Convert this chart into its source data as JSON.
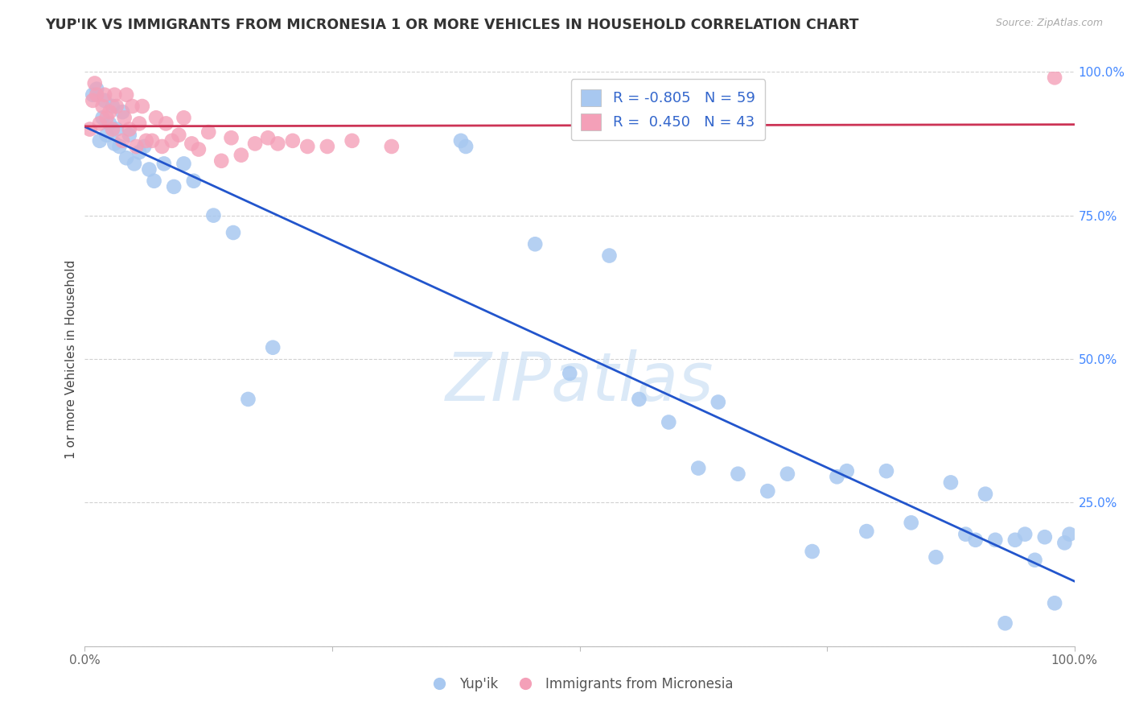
{
  "title": "YUP'IK VS IMMIGRANTS FROM MICRONESIA 1 OR MORE VEHICLES IN HOUSEHOLD CORRELATION CHART",
  "source": "Source: ZipAtlas.com",
  "ylabel": "1 or more Vehicles in Household",
  "blue_R": -0.805,
  "blue_N": 59,
  "pink_R": 0.45,
  "pink_N": 43,
  "blue_color": "#a8c8f0",
  "pink_color": "#f4a0b8",
  "blue_line_color": "#2255cc",
  "pink_line_color": "#cc3355",
  "watermark": "ZIPatlas",
  "blue_scatter_x": [
    0.008,
    0.012,
    0.015,
    0.018,
    0.02,
    0.022,
    0.025,
    0.028,
    0.03,
    0.032,
    0.035,
    0.038,
    0.042,
    0.045,
    0.05,
    0.055,
    0.06,
    0.065,
    0.07,
    0.08,
    0.09,
    0.1,
    0.11,
    0.13,
    0.15,
    0.165,
    0.19,
    0.38,
    0.385,
    0.455,
    0.49,
    0.53,
    0.56,
    0.59,
    0.62,
    0.64,
    0.66,
    0.69,
    0.71,
    0.735,
    0.76,
    0.77,
    0.79,
    0.81,
    0.835,
    0.86,
    0.875,
    0.89,
    0.9,
    0.91,
    0.92,
    0.93,
    0.94,
    0.95,
    0.96,
    0.97,
    0.98,
    0.99,
    0.995
  ],
  "blue_scatter_y": [
    0.96,
    0.97,
    0.88,
    0.92,
    0.95,
    0.89,
    0.91,
    0.94,
    0.875,
    0.9,
    0.87,
    0.93,
    0.85,
    0.89,
    0.84,
    0.86,
    0.87,
    0.83,
    0.81,
    0.84,
    0.8,
    0.84,
    0.81,
    0.75,
    0.72,
    0.43,
    0.52,
    0.88,
    0.87,
    0.7,
    0.475,
    0.68,
    0.43,
    0.39,
    0.31,
    0.425,
    0.3,
    0.27,
    0.3,
    0.165,
    0.295,
    0.305,
    0.2,
    0.305,
    0.215,
    0.155,
    0.285,
    0.195,
    0.185,
    0.265,
    0.185,
    0.04,
    0.185,
    0.195,
    0.15,
    0.19,
    0.075,
    0.18,
    0.195
  ],
  "pink_scatter_x": [
    0.005,
    0.008,
    0.01,
    0.012,
    0.015,
    0.018,
    0.02,
    0.022,
    0.025,
    0.028,
    0.03,
    0.032,
    0.038,
    0.04,
    0.042,
    0.045,
    0.048,
    0.052,
    0.055,
    0.058,
    0.062,
    0.068,
    0.072,
    0.078,
    0.082,
    0.088,
    0.095,
    0.1,
    0.108,
    0.115,
    0.125,
    0.138,
    0.148,
    0.158,
    0.172,
    0.185,
    0.195,
    0.21,
    0.225,
    0.245,
    0.27,
    0.31,
    0.98
  ],
  "pink_scatter_y": [
    0.9,
    0.95,
    0.98,
    0.96,
    0.91,
    0.94,
    0.96,
    0.92,
    0.93,
    0.9,
    0.96,
    0.94,
    0.88,
    0.92,
    0.96,
    0.9,
    0.94,
    0.87,
    0.91,
    0.94,
    0.88,
    0.88,
    0.92,
    0.87,
    0.91,
    0.88,
    0.89,
    0.92,
    0.875,
    0.865,
    0.895,
    0.845,
    0.885,
    0.855,
    0.875,
    0.885,
    0.875,
    0.88,
    0.87,
    0.87,
    0.88,
    0.87,
    0.99
  ]
}
